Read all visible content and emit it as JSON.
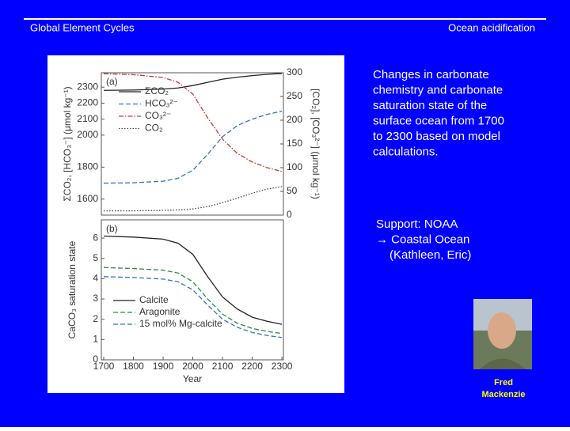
{
  "header": {
    "left": "Global Element Cycles",
    "right": "Ocean acidification"
  },
  "caption": [
    "Changes in carbonate",
    "chemistry and carbonate",
    "saturation state of the",
    "surface ocean from 1700",
    "to 2300 based on model",
    "calculations."
  ],
  "support": [
    "Support: NOAA",
    "→ Coastal Ocean",
    "(Kathleen, Eric)"
  ],
  "person": [
    "Fred",
    "Mackenzie"
  ],
  "chart_data": [
    {
      "type": "line",
      "panel": "(a)",
      "ylabel": "ΣCO₂, [HCO₃⁻] (μmol kg⁻¹)",
      "y2label": "[CO₂], [CO₃²⁻] (μmol kg⁻¹)",
      "x": [
        1700,
        1800,
        1900,
        1950,
        2000,
        2050,
        2100,
        2150,
        2200,
        2250,
        2300
      ],
      "xlim": [
        1692,
        2305
      ],
      "ylim": [
        1500,
        2390
      ],
      "yticks": [
        1600,
        1800,
        2000,
        2100,
        2200,
        2300
      ],
      "y2lim": [
        0,
        300
      ],
      "y2ticks": [
        0,
        50,
        100,
        150,
        200,
        250,
        300
      ],
      "series": [
        {
          "name": "ΣCO₂",
          "color": "#222222",
          "style": "solid",
          "values": [
            2280,
            2282,
            2288,
            2295,
            2310,
            2330,
            2350,
            2362,
            2372,
            2380,
            2386
          ]
        },
        {
          "name": "HCO₃²⁻",
          "color": "#3a6fc4",
          "style": "dashed",
          "values": [
            1700,
            1702,
            1712,
            1730,
            1780,
            1880,
            1990,
            2060,
            2100,
            2130,
            2150
          ]
        },
        {
          "name": "CO₃²⁻",
          "color": "#c43a3a",
          "style": "dashdot",
          "axis": "y2",
          "values": [
            298,
            296,
            290,
            280,
            255,
            205,
            160,
            130,
            112,
            100,
            92
          ]
        },
        {
          "name": "CO₂",
          "color": "#444444",
          "style": "dotted",
          "axis": "y2",
          "values": [
            9,
            9,
            10,
            11,
            13,
            18,
            26,
            36,
            46,
            55,
            60
          ]
        }
      ]
    },
    {
      "type": "line",
      "panel": "(b)",
      "ylabel": "CaCO₃ saturation state",
      "xlabel": "Year",
      "x": [
        1700,
        1800,
        1900,
        1950,
        2000,
        2050,
        2100,
        2150,
        2200,
        2250,
        2300
      ],
      "xlim": [
        1692,
        2305
      ],
      "xticks": [
        1700,
        1800,
        1900,
        2000,
        2100,
        2200,
        2300
      ],
      "ylim": [
        0,
        6.9
      ],
      "yticks": [
        0,
        1,
        2,
        3,
        4,
        5,
        6
      ],
      "series": [
        {
          "name": "Calcite",
          "color": "#222222",
          "style": "solid",
          "values": [
            6.1,
            6.05,
            5.95,
            5.75,
            5.2,
            4.1,
            3.1,
            2.5,
            2.1,
            1.9,
            1.75
          ]
        },
        {
          "name": "Aragonite",
          "color": "#2e8b3a",
          "style": "dashed",
          "values": [
            4.55,
            4.5,
            4.42,
            4.28,
            3.85,
            3.0,
            2.25,
            1.8,
            1.55,
            1.4,
            1.3
          ]
        },
        {
          "name": "15 mol% Mg-calcite",
          "color": "#3a6fc4",
          "style": "dashed",
          "values": [
            4.1,
            4.06,
            3.98,
            3.85,
            3.45,
            2.7,
            2.0,
            1.6,
            1.35,
            1.2,
            1.1
          ]
        }
      ]
    }
  ]
}
